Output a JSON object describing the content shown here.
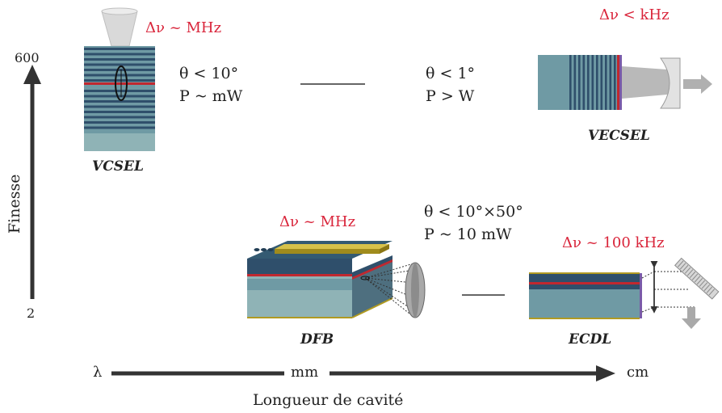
{
  "colors": {
    "layer_dark": "#2f4f6b",
    "layer_mid": "#6f9aa4",
    "layer_light": "#8fb3b6",
    "active_red": "#c0282f",
    "gold": "#b09a22",
    "text_red": "#d9243a",
    "gray": "#a9a9a9"
  },
  "axes": {
    "y_label": "Finesse",
    "y_top": "600",
    "y_bottom": "2",
    "x_start": "λ",
    "x_mid": "mm",
    "x_end": "cm",
    "x_label": "Longueur de cavité"
  },
  "devices": {
    "vcsel": {
      "label": "VCSEL",
      "linewidth": "Δν ~  MHz",
      "divergence": "θ < 10°",
      "power": "P ~ mW"
    },
    "vecsel": {
      "label": "VECSEL",
      "linewidth": "Δν < kHz",
      "divergence": "θ < 1°",
      "power": "P > W"
    },
    "dfb": {
      "label": "DFB",
      "linewidth": "Δν ~  MHz",
      "divergence": "θ < 10°×50°",
      "power": "P ~ 10 mW"
    },
    "ecdl": {
      "label": "ECDL",
      "linewidth": "Δν ~ 100 kHz"
    }
  }
}
